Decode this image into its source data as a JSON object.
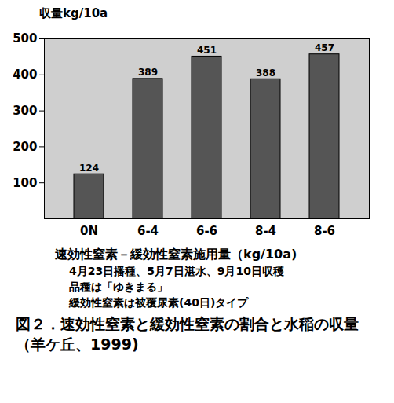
{
  "chart_data": {
    "type": "bar",
    "title": "図２．速効性窒素と緩効性窒素の割合と水稲の収量（羊ケ丘、1999)",
    "y_label": "収量kg/10a",
    "x_label": "速効性窒素－緩効性窒素施用量（kg/10a)",
    "annotations": [
      "4月23日播種、5月7日湛水、9月10日収穫",
      "品種は「ゆきまる」",
      "緩効性窒素は被覆尿素(40日)タイプ"
    ],
    "categories": [
      "0N",
      "6-4",
      "6-6",
      "8-4",
      "8-6"
    ],
    "values": [
      124,
      389,
      451,
      388,
      457
    ],
    "color": "#555555",
    "ylim": [
      0,
      500
    ],
    "yticks": [
      100,
      200,
      300,
      400,
      500
    ],
    "grid": false,
    "data_labels": true
  }
}
